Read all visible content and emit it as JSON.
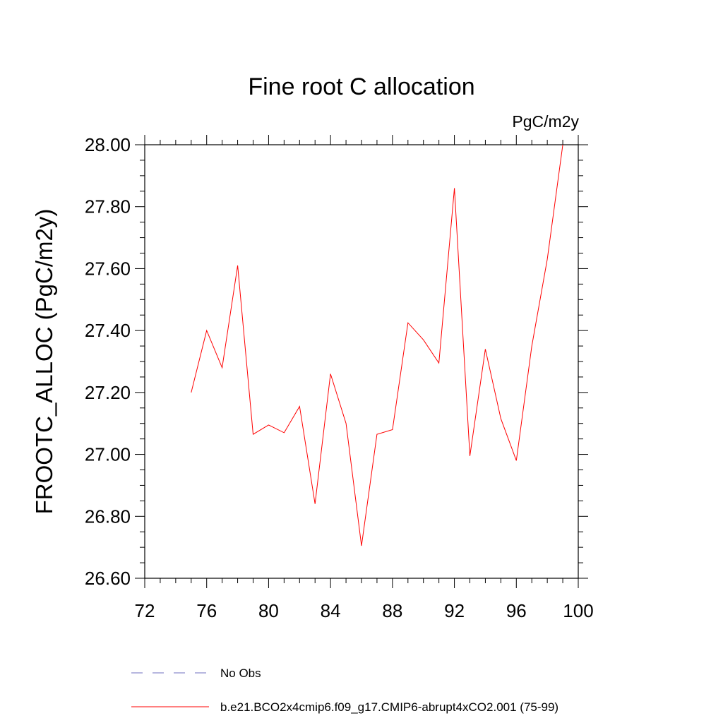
{
  "chart_data": {
    "type": "line",
    "title": "Fine root C allocation",
    "units": "PgC/m2y",
    "xlabel": "",
    "ylabel": "FROOTC_ALLOC  (PgC/m2y)",
    "xlim": [
      72,
      100
    ],
    "ylim": [
      26.6,
      28.0
    ],
    "x_ticks": [
      "72",
      "76",
      "80",
      "84",
      "88",
      "92",
      "96",
      "100"
    ],
    "y_ticks": [
      "26.60",
      "26.80",
      "27.00",
      "27.20",
      "27.40",
      "27.60",
      "27.80",
      "28.00"
    ],
    "grid": false,
    "legend_position": "bottom",
    "legend": [
      {
        "label": "No Obs",
        "color": "#6f6fbf",
        "style": "dashed"
      },
      {
        "label": "b.e21.BCO2x4cmip6.f09_g17.CMIP6-abrupt4xCO2.001 (75-99)",
        "color": "#ff0000",
        "style": "solid"
      }
    ],
    "series": [
      {
        "name": "b.e21.BCO2x4cmip6.f09_g17.CMIP6-abrupt4xCO2.001 (75-99)",
        "color": "#ff0000",
        "x": [
          75,
          76,
          77,
          78,
          79,
          80,
          81,
          82,
          83,
          84,
          85,
          86,
          87,
          88,
          89,
          90,
          91,
          92,
          93,
          94,
          95,
          96,
          97,
          98,
          99
        ],
        "values": [
          27.2,
          27.4,
          27.28,
          27.61,
          27.065,
          27.095,
          27.07,
          27.155,
          26.84,
          27.26,
          27.1,
          26.705,
          27.065,
          27.08,
          27.425,
          27.37,
          27.295,
          27.86,
          26.995,
          27.34,
          27.115,
          26.98,
          27.35,
          27.63,
          28.0
        ]
      }
    ]
  }
}
